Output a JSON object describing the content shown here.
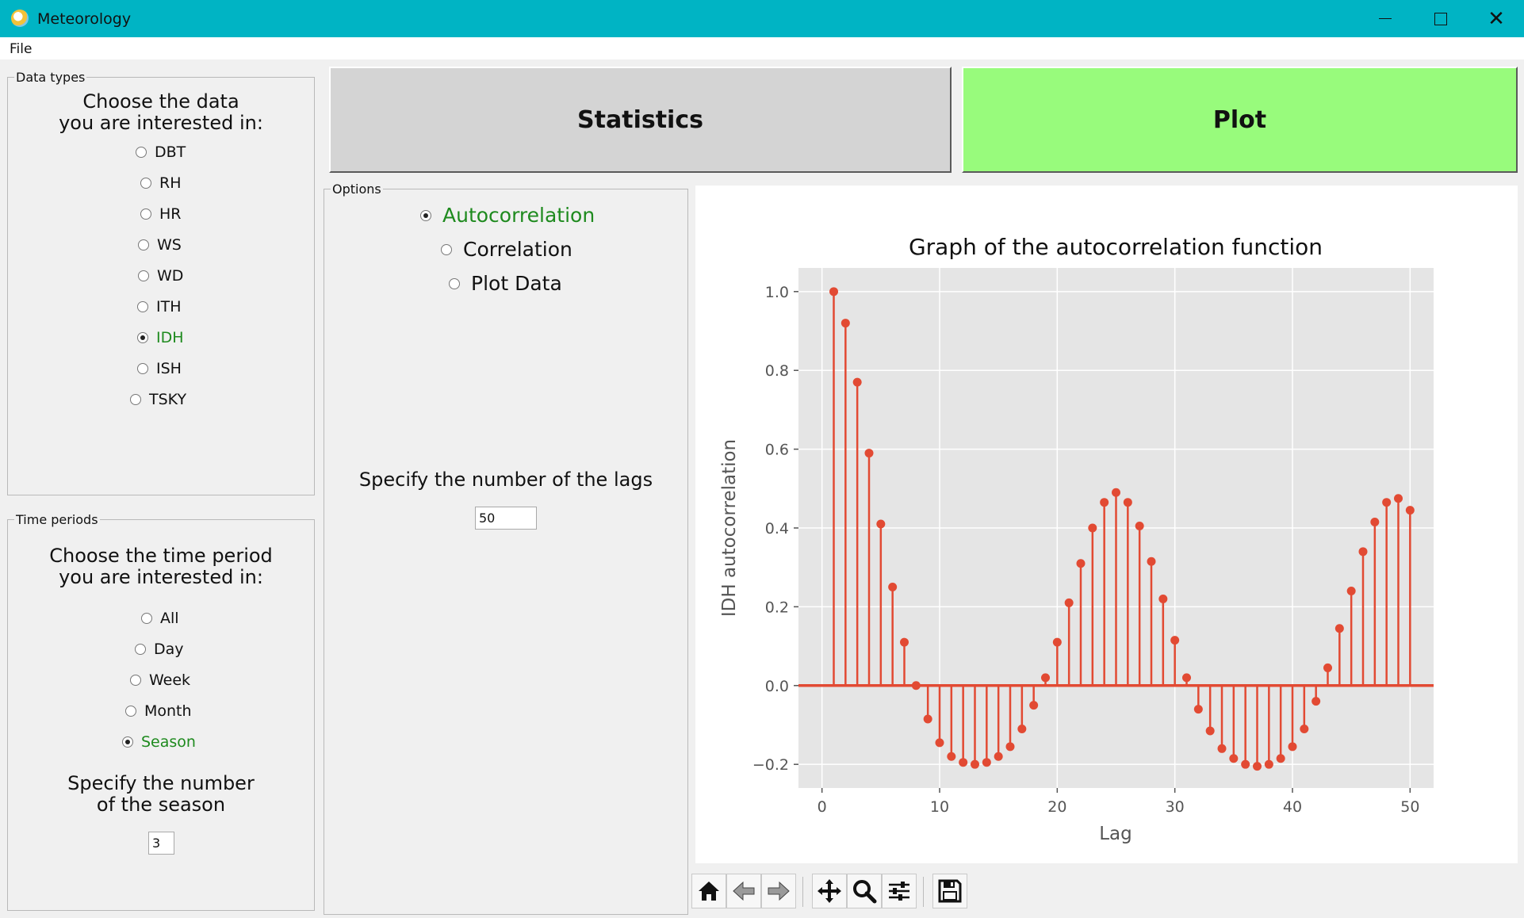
{
  "window": {
    "title": "Meteorology"
  },
  "menu": {
    "file": "File"
  },
  "data_types": {
    "group_label": "Data types",
    "heading_line1": "Choose the data",
    "heading_line2": "you are interested in:",
    "options": [
      "DBT",
      "RH",
      "HR",
      "WS",
      "WD",
      "ITH",
      "IDH",
      "ISH",
      "TSKY"
    ],
    "selected": "IDH"
  },
  "time_periods": {
    "group_label": "Time periods",
    "heading_line1": "Choose the time period",
    "heading_line2": "you are interested in:",
    "options": [
      "All",
      "Day",
      "Week",
      "Month",
      "Season"
    ],
    "selected": "Season",
    "season_label_line1": "Specify the number",
    "season_label_line2": "of the season",
    "season_value": "3"
  },
  "buttons": {
    "statistics": "Statistics",
    "plot": "Plot"
  },
  "options": {
    "group_label": "Options",
    "analyses": [
      "Autocorrelation",
      "Correlation",
      "Plot Data"
    ],
    "selected": "Autocorrelation",
    "lags_label": "Specify the number of the lags",
    "lags_value": "50"
  },
  "colors": {
    "titlebar": "#00b4c4",
    "plot_button": "#98fb7c",
    "selected_text": "#1e8a1e",
    "stem": "#e24a33",
    "plot_bg": "#e5e5e5"
  },
  "toolbar": {
    "icons": [
      "home-icon",
      "back-arrow-icon",
      "forward-arrow-icon",
      "pan-icon",
      "zoom-icon",
      "configure-subplots-icon",
      "save-icon"
    ]
  },
  "chart_data": {
    "type": "stem",
    "title": "Graph of the autocorrelation function",
    "xlabel": "Lag",
    "ylabel": "IDH autocorrelation",
    "xlim": [
      -2,
      52
    ],
    "ylim": [
      -0.26,
      1.06
    ],
    "xticks": [
      0,
      10,
      20,
      30,
      40,
      50
    ],
    "yticks": [
      -0.2,
      0.0,
      0.2,
      0.4,
      0.6,
      0.8,
      1.0
    ],
    "grid": true,
    "x": [
      1,
      2,
      3,
      4,
      5,
      6,
      7,
      8,
      9,
      10,
      11,
      12,
      13,
      14,
      15,
      16,
      17,
      18,
      19,
      20,
      21,
      22,
      23,
      24,
      25,
      26,
      27,
      28,
      29,
      30,
      31,
      32,
      33,
      34,
      35,
      36,
      37,
      38,
      39,
      40,
      41,
      42,
      43,
      44,
      45,
      46,
      47,
      48,
      49,
      50
    ],
    "values": [
      1.0,
      0.92,
      0.77,
      0.59,
      0.41,
      0.25,
      0.11,
      0.0,
      -0.085,
      -0.145,
      -0.18,
      -0.195,
      -0.2,
      -0.195,
      -0.18,
      -0.155,
      -0.11,
      -0.05,
      0.02,
      0.11,
      0.21,
      0.31,
      0.4,
      0.465,
      0.49,
      0.465,
      0.405,
      0.315,
      0.22,
      0.115,
      0.02,
      -0.06,
      -0.115,
      -0.16,
      -0.185,
      -0.2,
      -0.205,
      -0.2,
      -0.185,
      -0.155,
      -0.11,
      -0.04,
      0.045,
      0.145,
      0.24,
      0.34,
      0.415,
      0.465,
      0.475,
      0.445
    ]
  }
}
